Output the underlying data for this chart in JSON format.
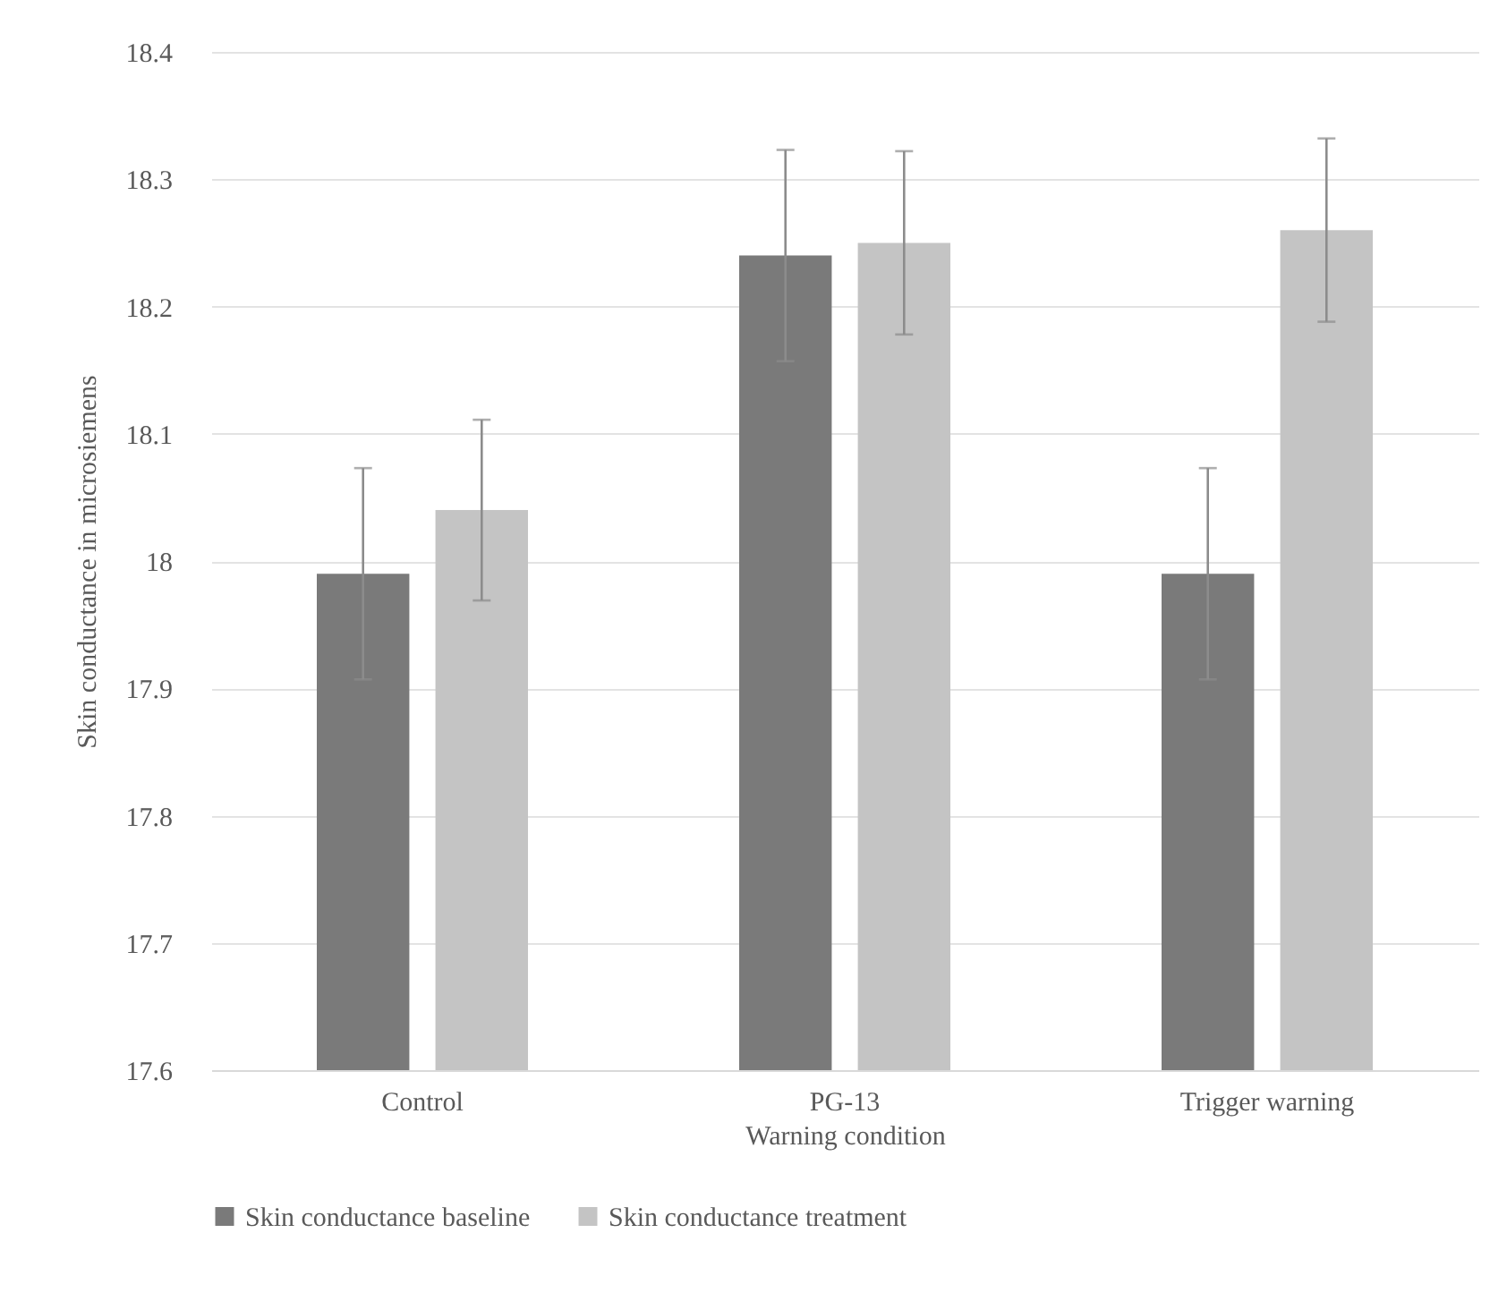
{
  "chart_data": {
    "type": "bar",
    "xlabel": "Warning condition",
    "ylabel": "Skin conductance in microsiemens",
    "categories": [
      "Control",
      "PG-13",
      "Trigger warning"
    ],
    "series": [
      {
        "name": "Skin conductance baseline",
        "color": "#7a7a7a",
        "values": [
          17.99,
          18.24,
          17.99
        ],
        "errors": [
          0.083,
          0.083,
          0.083
        ]
      },
      {
        "name": "Skin conductance treatment",
        "color": "#c4c4c4",
        "values": [
          18.04,
          18.25,
          18.26
        ],
        "errors": [
          0.071,
          0.072,
          0.072
        ]
      }
    ],
    "ylim": [
      17.6,
      18.4
    ],
    "yticks": [
      17.6,
      17.7,
      17.8,
      17.9,
      18,
      18.1,
      18.2,
      18.3,
      18.4
    ],
    "grid": "y",
    "legend": "bottom"
  }
}
